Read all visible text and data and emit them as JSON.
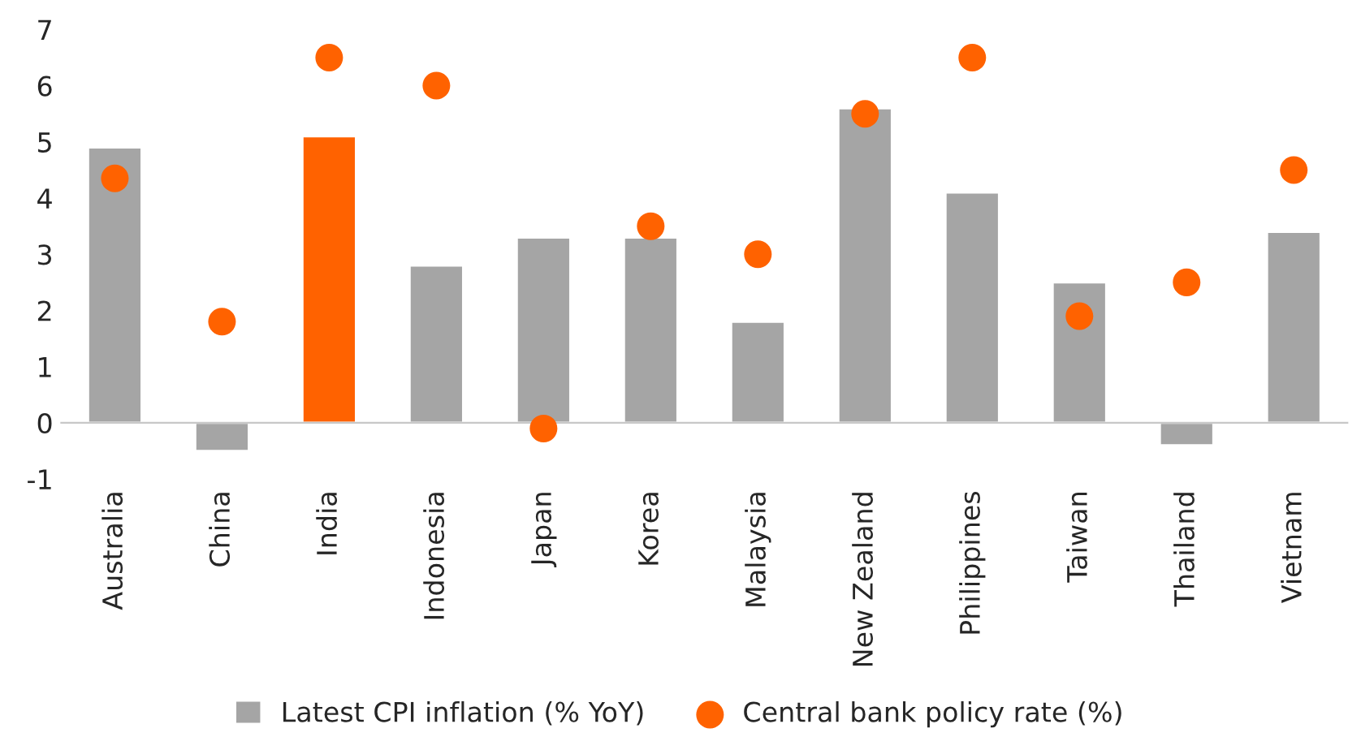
{
  "chart_data": {
    "type": "bar",
    "categories": [
      "Australia",
      "China",
      "India",
      "Indonesia",
      "Japan",
      "Korea",
      "Malaysia",
      "New Zealand",
      "Philippines",
      "Taiwan",
      "Thailand",
      "Vietnam"
    ],
    "series": [
      {
        "name": "Latest CPI inflation (% YoY)",
        "color": "#a5a5a5",
        "colors": [
          "#a5a5a5",
          "#a5a5a5",
          "#ff6200",
          "#a5a5a5",
          "#a5a5a5",
          "#a5a5a5",
          "#a5a5a5",
          "#a5a5a5",
          "#a5a5a5",
          "#a5a5a5",
          "#a5a5a5",
          "#a5a5a5"
        ],
        "values": [
          4.9,
          -0.5,
          5.1,
          2.8,
          3.3,
          3.3,
          1.8,
          5.6,
          4.1,
          2.5,
          -0.4,
          3.4
        ]
      },
      {
        "name": "Central bank policy rate (%)",
        "type": "scatter",
        "color": "#ff6200",
        "marker": "circle",
        "values": [
          4.35,
          1.8,
          6.5,
          6.0,
          -0.1,
          3.5,
          3.0,
          5.5,
          6.5,
          1.9,
          2.5,
          4.5
        ]
      }
    ],
    "ylim": [
      -1,
      7
    ],
    "yticks": [
      -1,
      0,
      1,
      2,
      3,
      4,
      5,
      6,
      7
    ],
    "grid": false,
    "legend": "bottom"
  }
}
